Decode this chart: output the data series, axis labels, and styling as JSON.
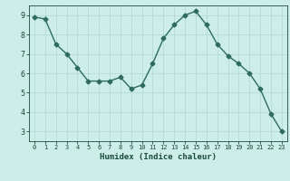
{
  "x": [
    0,
    1,
    2,
    3,
    4,
    5,
    6,
    7,
    8,
    9,
    10,
    11,
    12,
    13,
    14,
    15,
    16,
    17,
    18,
    19,
    20,
    21,
    22,
    23
  ],
  "y": [
    8.9,
    8.8,
    7.5,
    7.0,
    6.3,
    5.6,
    5.6,
    5.6,
    5.8,
    5.2,
    5.4,
    6.5,
    7.8,
    8.5,
    9.0,
    9.2,
    8.5,
    7.5,
    6.9,
    6.5,
    6.0,
    5.2,
    3.9,
    3.0
  ],
  "xlabel": "Humidex (Indice chaleur)",
  "ylim": [
    2.5,
    9.5
  ],
  "xlim": [
    -0.5,
    23.5
  ],
  "yticks": [
    3,
    4,
    5,
    6,
    7,
    8,
    9
  ],
  "xticks": [
    0,
    1,
    2,
    3,
    4,
    5,
    6,
    7,
    8,
    9,
    10,
    11,
    12,
    13,
    14,
    15,
    16,
    17,
    18,
    19,
    20,
    21,
    22,
    23
  ],
  "line_color": "#2e6b5e",
  "bg_color": "#cdeee8",
  "grid_color": "#afd8d0",
  "axis_bg": "#cdeee8",
  "tick_label_color": "#1a4a3a",
  "xlabel_color": "#1a4a3a",
  "marker": "D",
  "marker_size": 2.5,
  "line_width": 1.0
}
